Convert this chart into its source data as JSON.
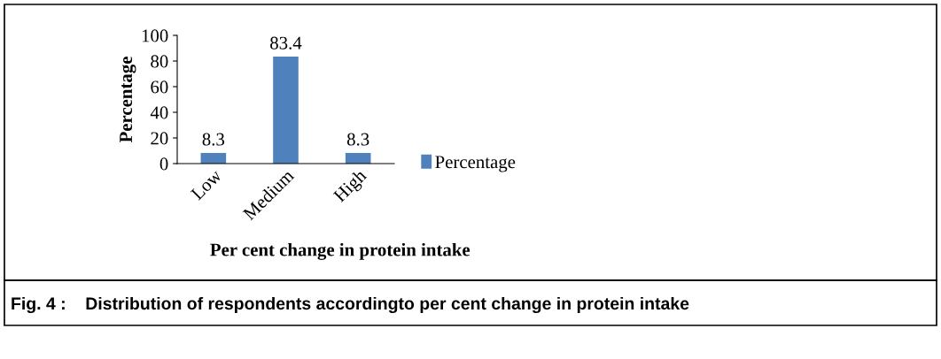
{
  "chart_data": {
    "type": "bar",
    "categories": [
      "Low",
      "Medium",
      "High"
    ],
    "series": [
      {
        "name": "Percentage",
        "color": "#4f81bd",
        "values": [
          8.3,
          83.4,
          8.3
        ]
      }
    ],
    "xlabel": "Per cent change in protein intake",
    "ylabel": "Percentage",
    "ylim": [
      0,
      100
    ],
    "yticks": [
      0,
      20,
      40,
      60,
      80,
      100
    ],
    "data_labels": true,
    "legend": "right",
    "grid": false,
    "annotations": [
      "Fig. 4 :    Distribution of respondents accordingto per cent change in protein intake"
    ]
  }
}
